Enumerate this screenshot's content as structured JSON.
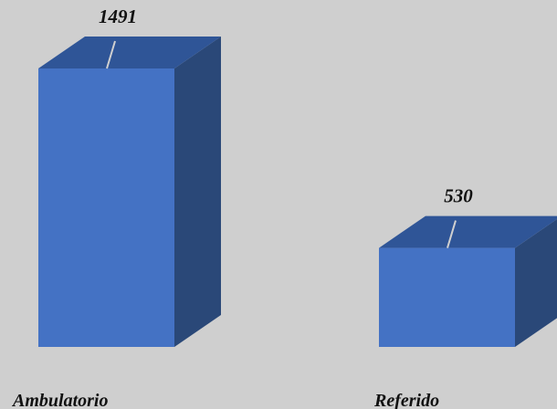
{
  "chart_data": {
    "type": "bar",
    "three_d": true,
    "categories": [
      "Ambulatorio",
      "Referido"
    ],
    "values": [
      1491,
      530
    ],
    "title": "",
    "xlabel": "",
    "ylabel": "",
    "ylim": [
      0,
      1491
    ],
    "grid": false,
    "legend": "none",
    "show_data_labels": true
  },
  "colors": {
    "background": "#cfcfcf",
    "bar_front": "#4472c4",
    "bar_top": "#2f5597",
    "bar_side": "#2a4878",
    "leader_line": "#d0d0d0"
  }
}
